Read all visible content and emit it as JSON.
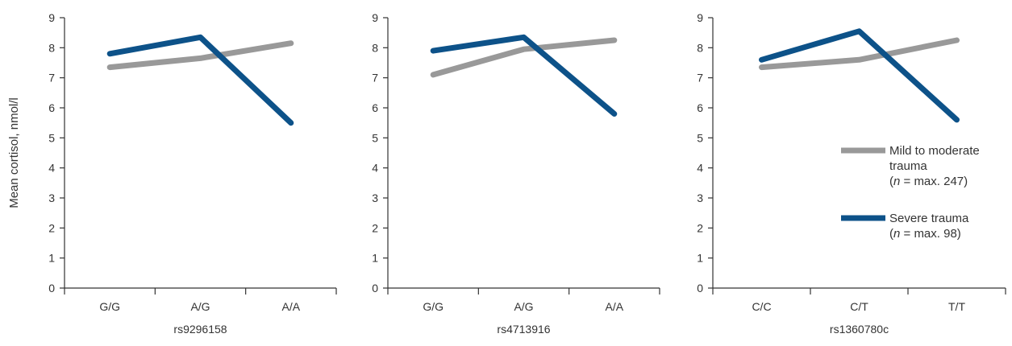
{
  "colors": {
    "mild": "#999999",
    "severe": "#0d5289",
    "axis": "#333333",
    "text": "#333333"
  },
  "legend": {
    "mild": {
      "line1": "Mild to moderate",
      "line2": "trauma",
      "n_italic": "n",
      "n_rest": " = max. 247)",
      "paren_open": "("
    },
    "severe": {
      "line1": "Severe trauma",
      "n_italic": "n",
      "n_rest": " = max. 98)",
      "paren_open": "("
    }
  },
  "chart_data": [
    {
      "type": "line",
      "ylabel": "Mean cortisol, nmol/l",
      "xlabel": "rs9296158",
      "categories": [
        "G/G",
        "A/G",
        "A/A"
      ],
      "ylim": [
        0,
        9
      ],
      "yticks": [
        0,
        1,
        2,
        3,
        4,
        5,
        6,
        7,
        8,
        9
      ],
      "grid": false,
      "series": [
        {
          "name": "Mild to moderate trauma",
          "color": "#999999",
          "values": [
            7.35,
            7.65,
            8.15
          ]
        },
        {
          "name": "Severe trauma",
          "color": "#0d5289",
          "values": [
            7.8,
            8.35,
            5.5
          ]
        }
      ]
    },
    {
      "type": "line",
      "ylabel": "",
      "xlabel": "rs4713916",
      "categories": [
        "G/G",
        "A/G",
        "A/A"
      ],
      "ylim": [
        0,
        9
      ],
      "yticks": [
        0,
        1,
        2,
        3,
        4,
        5,
        6,
        7,
        8,
        9
      ],
      "grid": false,
      "series": [
        {
          "name": "Mild to moderate trauma",
          "color": "#999999",
          "values": [
            7.1,
            7.95,
            8.25
          ]
        },
        {
          "name": "Severe trauma",
          "color": "#0d5289",
          "values": [
            7.9,
            8.35,
            5.8
          ]
        }
      ]
    },
    {
      "type": "line",
      "ylabel": "",
      "xlabel": "rs1360780c",
      "categories": [
        "C/C",
        "C/T",
        "T/T"
      ],
      "ylim": [
        0,
        9
      ],
      "yticks": [
        0,
        1,
        2,
        3,
        4,
        5,
        6,
        7,
        8,
        9
      ],
      "grid": false,
      "legend_position": "right",
      "series": [
        {
          "name": "Mild to moderate trauma",
          "color": "#999999",
          "values": [
            7.35,
            7.6,
            8.25
          ]
        },
        {
          "name": "Severe trauma",
          "color": "#0d5289",
          "values": [
            7.6,
            8.55,
            5.6
          ]
        }
      ]
    }
  ]
}
